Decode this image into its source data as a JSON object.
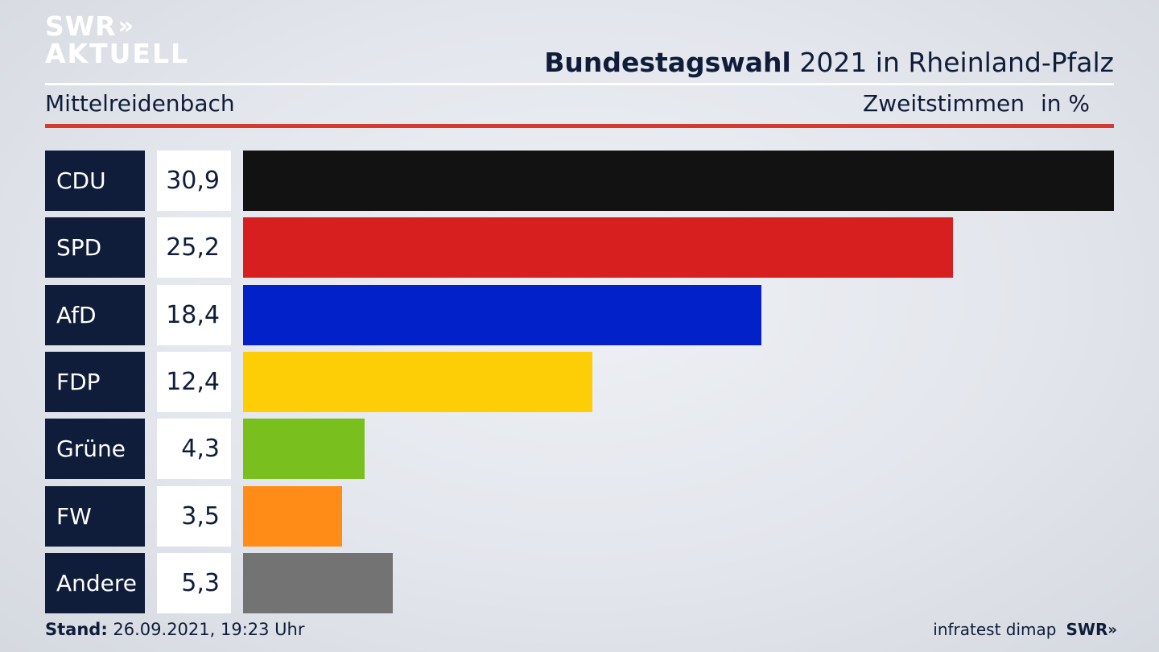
{
  "brand": {
    "logo_top": "SWR",
    "logo_chevrons": "»",
    "logo_bottom": "AKTUELL"
  },
  "header": {
    "title_bold": "Bundestagswahl",
    "title_rest": " 2021 in Rheinland-Pfalz",
    "region": "Mittelreidenbach",
    "metric": "Zweitstimmen",
    "unit": "in %"
  },
  "colors": {
    "navy": "#0f1d3a",
    "accent_red_rule": "#d43a2f"
  },
  "chart_data": {
    "type": "bar",
    "orientation": "horizontal",
    "categories": [
      "CDU",
      "SPD",
      "AfD",
      "FDP",
      "Grüne",
      "FW",
      "Andere"
    ],
    "values": [
      30.9,
      25.2,
      18.4,
      12.4,
      4.3,
      3.5,
      5.3
    ],
    "value_labels": [
      "30,9",
      "25,2",
      "18,4",
      "12,4",
      "4,3",
      "3,5",
      "5,3"
    ],
    "colors": [
      "#121212",
      "#d81f20",
      "#0221c9",
      "#fdcd06",
      "#79bf1e",
      "#fe8c16",
      "#737373"
    ],
    "xlim": [
      0,
      30.9
    ],
    "grid": false,
    "legend": "none"
  },
  "footer": {
    "stand_label": "Stand:",
    "stand_value": " 26.09.2021, 19:23 Uhr",
    "source": "infratest dimap",
    "source_logo": "SWR",
    "source_logo_chevrons": "»"
  }
}
